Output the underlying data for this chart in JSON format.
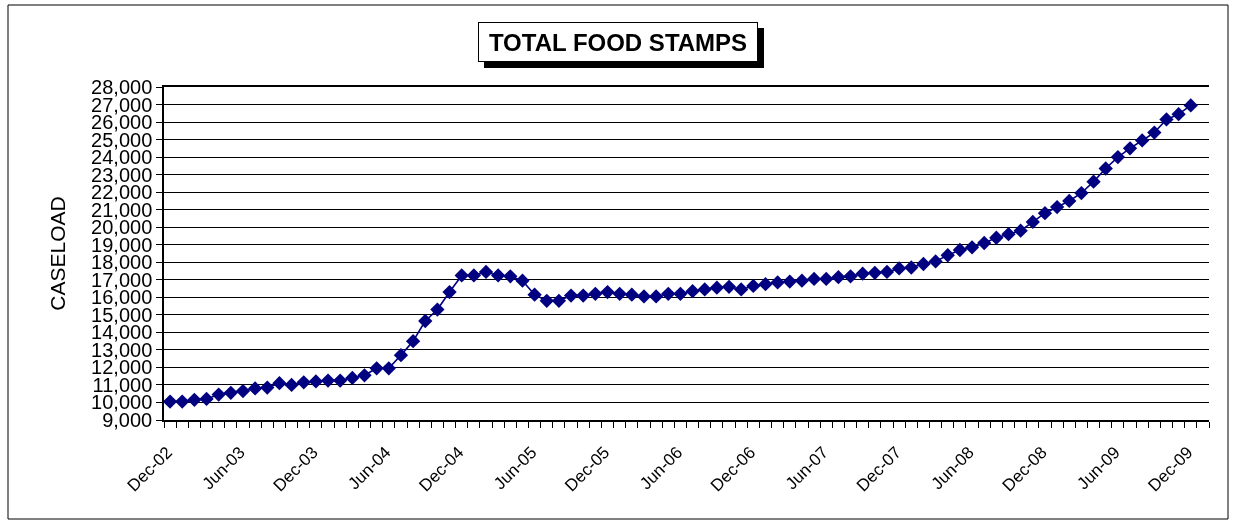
{
  "chart_data": {
    "type": "line",
    "title": "TOTAL FOOD STAMPS",
    "ylabel": "CASELOAD",
    "categories": [
      "Dec-02",
      null,
      null,
      null,
      null,
      null,
      "Jun-03",
      null,
      null,
      null,
      null,
      null,
      "Dec-03",
      null,
      null,
      null,
      null,
      null,
      "Jun-04",
      null,
      null,
      null,
      null,
      null,
      "Dec-04",
      null,
      null,
      null,
      null,
      null,
      "Jun-05",
      null,
      null,
      null,
      null,
      null,
      "Dec-05",
      null,
      null,
      null,
      null,
      null,
      "Jun-06",
      null,
      null,
      null,
      null,
      null,
      "Dec-06",
      null,
      null,
      null,
      null,
      null,
      "Jun-07",
      null,
      null,
      null,
      null,
      null,
      "Dec-07",
      null,
      null,
      null,
      null,
      null,
      "Jun-08",
      null,
      null,
      null,
      null,
      null,
      "Dec-08",
      null,
      null,
      null,
      null,
      null,
      "Jun-09",
      null,
      null,
      null,
      null,
      null,
      "Dec-09",
      null
    ],
    "series": [
      {
        "color": "#000080",
        "values": [
          10050,
          10050,
          10150,
          10200,
          10450,
          10550,
          10650,
          10800,
          10850,
          11100,
          11000,
          11150,
          11200,
          11250,
          11250,
          11400,
          11550,
          11950,
          11950,
          12700,
          13500,
          14650,
          15300,
          16300,
          17250,
          17250,
          17450,
          17250,
          17200,
          16950,
          16150,
          15800,
          15800,
          16100,
          16100,
          16200,
          16300,
          16200,
          16150,
          16050,
          16050,
          16200,
          16200,
          16350,
          16450,
          16550,
          16600,
          16450,
          16650,
          16750,
          16850,
          16900,
          16950,
          17050,
          17050,
          17150,
          17200,
          17350,
          17400,
          17450,
          17650,
          17700,
          17900,
          18050,
          18400,
          18700,
          18850,
          19100,
          19400,
          19600,
          19800,
          20300,
          20800,
          21150,
          21500,
          21950,
          22600,
          23350,
          24000,
          24500,
          24950,
          25400,
          26150,
          26450,
          26950,
          null
        ]
      }
    ],
    "ylim": [
      9000,
      28000
    ],
    "yticks": [
      {
        "value": 9000,
        "label": "9,000"
      },
      {
        "value": 10000,
        "label": "10,000"
      },
      {
        "value": 11000,
        "label": "11,000"
      },
      {
        "value": 12000,
        "label": "12,000"
      },
      {
        "value": 13000,
        "label": "13,000"
      },
      {
        "value": 14000,
        "label": "14,000"
      },
      {
        "value": 15000,
        "label": "15,000"
      },
      {
        "value": 16000,
        "label": "16,000"
      },
      {
        "value": 17000,
        "label": "17,000"
      },
      {
        "value": 18000,
        "label": "18,000"
      },
      {
        "value": 19000,
        "label": "19,000"
      },
      {
        "value": 20000,
        "label": "20,000"
      },
      {
        "value": 21000,
        "label": "21,000"
      },
      {
        "value": 22000,
        "label": "22,000"
      },
      {
        "value": 23000,
        "label": "23,000"
      },
      {
        "value": 24000,
        "label": "24,000"
      },
      {
        "value": 25000,
        "label": "25,000"
      },
      {
        "value": 26000,
        "label": "26,000"
      },
      {
        "value": 27000,
        "label": "27,000"
      },
      {
        "value": 28000,
        "label": "28,000"
      }
    ],
    "grid": "y",
    "marker": "diamond",
    "line_style": "solid"
  }
}
